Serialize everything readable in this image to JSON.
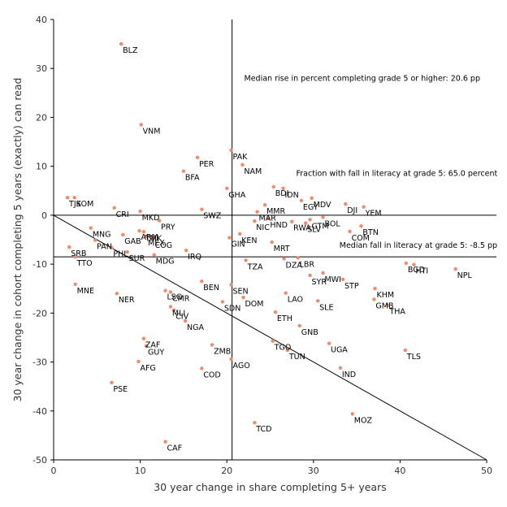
{
  "chart_data": {
    "type": "scatter",
    "xlabel": "30 year change in share completing 5+ years",
    "ylabel": "30 year change in cohort completing 5 years (exactly) can read",
    "xlim": [
      0,
      50
    ],
    "ylim": [
      -50,
      40
    ],
    "x_ticks": [
      "0",
      "10",
      "20",
      "30",
      "40",
      "50"
    ],
    "y_ticks": [
      "40",
      "30",
      "20",
      "10",
      "0",
      "-10",
      "-20",
      "-30",
      "-40",
      "-50"
    ],
    "point_color": "#f08a6a",
    "reference_lines": {
      "median_x": 20.6,
      "zero_y": 0,
      "median_fall_y": -8.5,
      "diagonal": {
        "from": [
          0,
          0
        ],
        "to": [
          50,
          -50
        ]
      }
    },
    "annotations": [
      {
        "text": "Median rise in percent completing grade 5 or higher: 20.6 pp",
        "x": 22,
        "y": 27.5
      },
      {
        "text": "Fraction with fall in literacy at grade 5: 65.0 percent",
        "x": 28,
        "y": 8
      },
      {
        "text": "Median fall in literacy at grade 5: -8.5 pp",
        "x": 33,
        "y": -6.7
      }
    ],
    "points": [
      {
        "label": "BLZ",
        "x": 7.8,
        "y": 35
      },
      {
        "label": "VNM",
        "x": 10.1,
        "y": 18.5
      },
      {
        "label": "PER",
        "x": 16.6,
        "y": 11.8
      },
      {
        "label": "BFA",
        "x": 15.0,
        "y": 9.0
      },
      {
        "label": "PAK",
        "x": 20.5,
        "y": 13.3
      },
      {
        "label": "NAM",
        "x": 21.8,
        "y": 10.3
      },
      {
        "label": "GHA",
        "x": 20.0,
        "y": 5.5
      },
      {
        "label": "BDI",
        "x": 25.4,
        "y": 5.8
      },
      {
        "label": "IDN",
        "x": 26.5,
        "y": 5.5
      },
      {
        "label": "EGY",
        "x": 28.6,
        "y": 3.0
      },
      {
        "label": "MDV",
        "x": 29.8,
        "y": 3.5
      },
      {
        "label": "DJI",
        "x": 33.7,
        "y": 2.3
      },
      {
        "label": "YEM",
        "x": 35.8,
        "y": 1.7
      },
      {
        "label": "MMR",
        "x": 24.4,
        "y": 2.1
      },
      {
        "label": "MAR",
        "x": 23.5,
        "y": 0.7
      },
      {
        "label": "HND",
        "x": 24.8,
        "y": -0.7
      },
      {
        "label": "RWA",
        "x": 27.5,
        "y": -1.3
      },
      {
        "label": "GTM",
        "x": 29.6,
        "y": -0.9
      },
      {
        "label": "BOL",
        "x": 31.1,
        "y": -0.4
      },
      {
        "label": "SLV",
        "x": 29.1,
        "y": -1.6
      },
      {
        "label": "NIC",
        "x": 23.2,
        "y": -1.2
      },
      {
        "label": "KEN",
        "x": 21.5,
        "y": -3.8
      },
      {
        "label": "BTN",
        "x": 35.5,
        "y": -2.2
      },
      {
        "label": "COM",
        "x": 34.2,
        "y": -3.3
      },
      {
        "label": "GIN",
        "x": 20.3,
        "y": -4.6
      },
      {
        "label": "MRT",
        "x": 25.2,
        "y": -5.5
      },
      {
        "label": "TZA",
        "x": 22.2,
        "y": -9.2
      },
      {
        "label": "DZA",
        "x": 26.6,
        "y": -8.9
      },
      {
        "label": "LBR",
        "x": 28.2,
        "y": -8.7
      },
      {
        "label": "SYR",
        "x": 29.6,
        "y": -12.3
      },
      {
        "label": "MWI",
        "x": 31.1,
        "y": -11.8
      },
      {
        "label": "STP",
        "x": 33.4,
        "y": -13.1
      },
      {
        "label": "BGD",
        "x": 40.7,
        "y": -9.8
      },
      {
        "label": "HTI",
        "x": 41.6,
        "y": -10.1
      },
      {
        "label": "NPL",
        "x": 46.4,
        "y": -11.0
      },
      {
        "label": "KHM",
        "x": 37.1,
        "y": -15.0
      },
      {
        "label": "GMB",
        "x": 37.0,
        "y": -17.2
      },
      {
        "label": "THA",
        "x": 38.6,
        "y": -18.4
      },
      {
        "label": "SEN",
        "x": 20.5,
        "y": -14.2
      },
      {
        "label": "DOM",
        "x": 21.9,
        "y": -16.8
      },
      {
        "label": "LAO",
        "x": 26.8,
        "y": -15.9
      },
      {
        "label": "SLE",
        "x": 30.5,
        "y": -17.5
      },
      {
        "label": "ETH",
        "x": 25.6,
        "y": -19.8
      },
      {
        "label": "GNB",
        "x": 28.4,
        "y": -22.6
      },
      {
        "label": "TGO",
        "x": 25.3,
        "y": -25.7
      },
      {
        "label": "UGA",
        "x": 31.8,
        "y": -26.2
      },
      {
        "label": "TUN",
        "x": 27.0,
        "y": -27.6
      },
      {
        "label": "IND",
        "x": 33.1,
        "y": -31.2
      },
      {
        "label": "TLS",
        "x": 40.6,
        "y": -27.6
      },
      {
        "label": "MOZ",
        "x": 34.5,
        "y": -40.6
      },
      {
        "label": "TCD",
        "x": 23.2,
        "y": -42.4
      },
      {
        "label": "SRB",
        "x": 1.8,
        "y": -6.5
      },
      {
        "label": "TTO",
        "x": 2.5,
        "y": -8.5
      },
      {
        "label": "TJK",
        "x": 1.6,
        "y": 3.6
      },
      {
        "label": "SOM",
        "x": 2.4,
        "y": 3.6
      },
      {
        "label": "CRI",
        "x": 7.0,
        "y": 1.5
      },
      {
        "label": "MKD",
        "x": 10.0,
        "y": 0.8
      },
      {
        "label": "PRY",
        "x": 12.2,
        "y": -1.1
      },
      {
        "label": "SWZ",
        "x": 17.1,
        "y": 1.2
      },
      {
        "label": "MNG",
        "x": 4.3,
        "y": -2.6
      },
      {
        "label": "PAN",
        "x": 4.8,
        "y": -5.1
      },
      {
        "label": "GAB",
        "x": 8.0,
        "y": -4.0
      },
      {
        "label": "ARM",
        "x": 9.9,
        "y": -3.2
      },
      {
        "label": "TMK",
        "x": 10.4,
        "y": -3.4
      },
      {
        "label": "MEX",
        "x": 10.7,
        "y": -4.3
      },
      {
        "label": "COG",
        "x": 11.5,
        "y": -4.8
      },
      {
        "label": "PHL",
        "x": 6.7,
        "y": -6.6
      },
      {
        "label": "SUR",
        "x": 8.5,
        "y": -7.5
      },
      {
        "label": "MDG",
        "x": 11.6,
        "y": -8.1
      },
      {
        "label": "IRQ",
        "x": 15.3,
        "y": -7.2
      },
      {
        "label": "MNE",
        "x": 2.5,
        "y": -14.1
      },
      {
        "label": "NER",
        "x": 7.3,
        "y": -16.0
      },
      {
        "label": "LSO",
        "x": 12.9,
        "y": -15.4
      },
      {
        "label": "CMR",
        "x": 13.5,
        "y": -15.7
      },
      {
        "label": "MLI",
        "x": 13.5,
        "y": -18.7
      },
      {
        "label": "CIV",
        "x": 13.9,
        "y": -19.4
      },
      {
        "label": "BEN",
        "x": 17.1,
        "y": -13.5
      },
      {
        "label": "SDN",
        "x": 19.5,
        "y": -17.7
      },
      {
        "label": "NGA",
        "x": 15.2,
        "y": -21.6
      },
      {
        "label": "ZAF",
        "x": 10.4,
        "y": -25.2
      },
      {
        "label": "GUY",
        "x": 10.7,
        "y": -26.7
      },
      {
        "label": "AFG",
        "x": 9.8,
        "y": -29.9
      },
      {
        "label": "ZMB",
        "x": 18.3,
        "y": -26.5
      },
      {
        "label": "AGO",
        "x": 20.5,
        "y": -29.4
      },
      {
        "label": "COD",
        "x": 17.1,
        "y": -31.3
      },
      {
        "label": "PSE",
        "x": 6.7,
        "y": -34.2
      },
      {
        "label": "CAF",
        "x": 12.9,
        "y": -46.3
      }
    ]
  }
}
